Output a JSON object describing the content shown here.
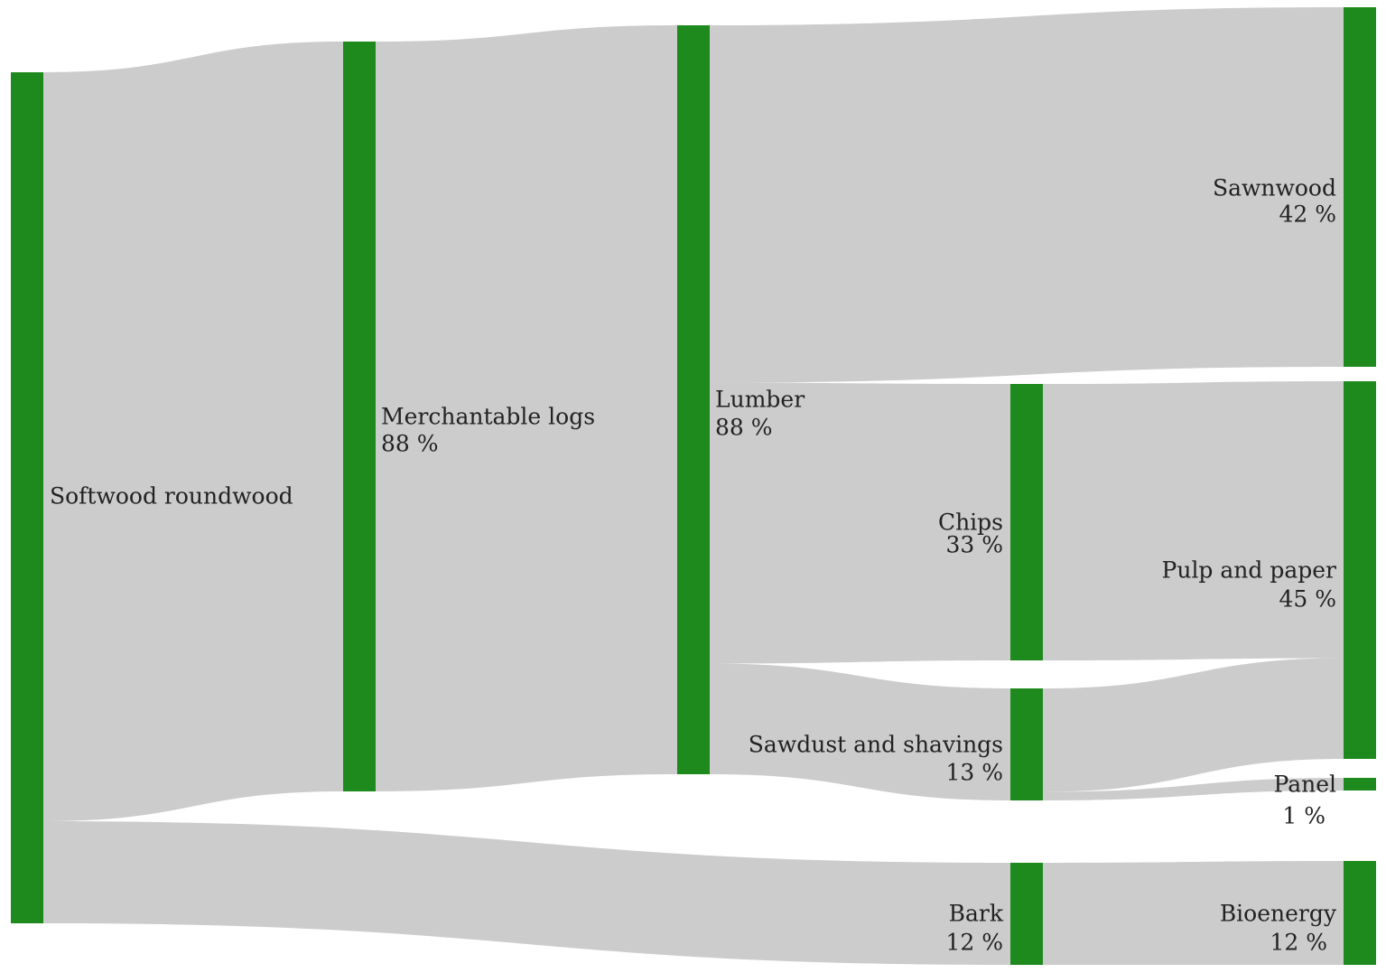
{
  "colors": {
    "node": "#1e8a1e",
    "link": "#cccccc",
    "text": "#222222",
    "background": "#ffffff"
  },
  "nodes": [
    {
      "id": "softwood",
      "label": "Softwood roundwood",
      "percent": ""
    },
    {
      "id": "logs",
      "label": "Merchantable logs",
      "percent": "88 %"
    },
    {
      "id": "lumber",
      "label": "Lumber",
      "percent": "88 %"
    },
    {
      "id": "sawnwood",
      "label": "Sawnwood",
      "percent": "42 %"
    },
    {
      "id": "chips",
      "label": "Chips",
      "percent": "33 %"
    },
    {
      "id": "sawdust",
      "label": "Sawdust and shavings",
      "percent": "13 %"
    },
    {
      "id": "pulp",
      "label": "Pulp and paper",
      "percent": "45 %"
    },
    {
      "id": "panel",
      "label": "Panel",
      "percent": "1 %"
    },
    {
      "id": "bark",
      "label": "Bark",
      "percent": "12 %"
    },
    {
      "id": "bioenergy",
      "label": "Bioenergy",
      "percent": "12 %"
    }
  ],
  "chart_data": {
    "type": "sankey",
    "unit": "%",
    "flows": [
      {
        "source": "Softwood roundwood",
        "target": "Merchantable logs",
        "value": 88
      },
      {
        "source": "Softwood roundwood",
        "target": "Bark",
        "value": 12
      },
      {
        "source": "Merchantable logs",
        "target": "Lumber",
        "value": 88
      },
      {
        "source": "Lumber",
        "target": "Sawnwood",
        "value": 42
      },
      {
        "source": "Lumber",
        "target": "Chips",
        "value": 33
      },
      {
        "source": "Lumber",
        "target": "Sawdust and shavings",
        "value": 13
      },
      {
        "source": "Chips",
        "target": "Pulp and paper",
        "value": 33
      },
      {
        "source": "Sawdust and shavings",
        "target": "Pulp and paper",
        "value": 12
      },
      {
        "source": "Sawdust and shavings",
        "target": "Panel",
        "value": 1
      },
      {
        "source": "Bark",
        "target": "Bioenergy",
        "value": 12
      }
    ]
  }
}
